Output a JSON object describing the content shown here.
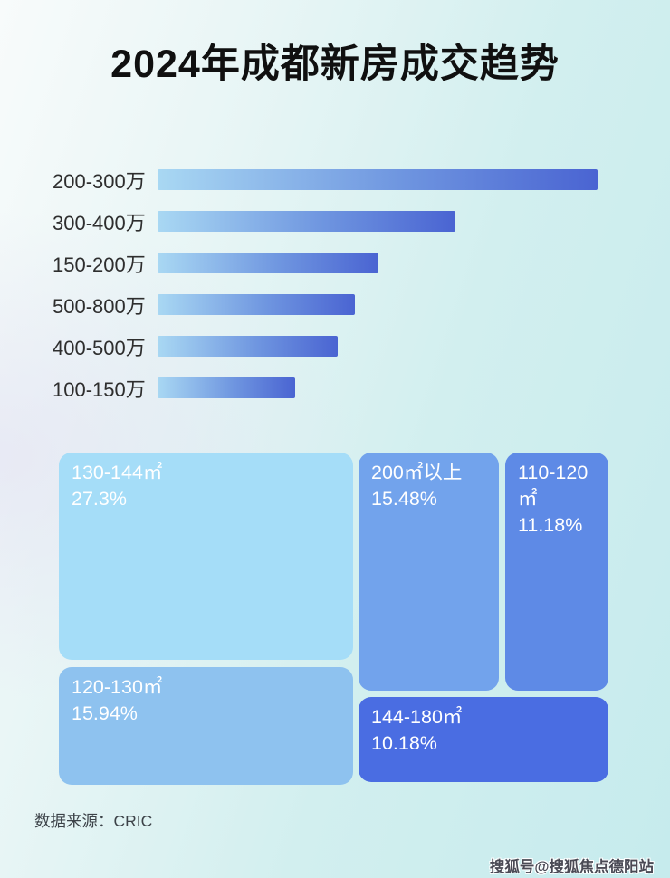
{
  "page": {
    "title": "2024年成都新房成交趋势"
  },
  "footer": {
    "source_label": "数据来源：CRIC"
  },
  "watermark": {
    "text": "搜狐号@搜狐焦点德阳站"
  },
  "colors": {
    "background_start": "#f8fbfb",
    "background_end": "#c6ebed",
    "bar_gradient_start": "#a9d8f3",
    "bar_gradient_end": "#4a64d2",
    "title_text": "#101010",
    "bar_label_text": "#2e2e2e",
    "tile_text": "#ffffff"
  },
  "bar_chart": {
    "rows": [
      {
        "label": "200-300万",
        "width_css": "99.2%"
      },
      {
        "label": "300-400万",
        "width_css": "67.1%"
      },
      {
        "label": "150-200万",
        "width_css": "49.8%"
      },
      {
        "label": "500-800万",
        "width_css": "44.5%"
      },
      {
        "label": "400-500万",
        "width_css": "40.6%"
      },
      {
        "label": "100-150万",
        "width_css": "31.0%"
      }
    ]
  },
  "treemap": {
    "tiles": [
      {
        "label": "130-144㎡",
        "value": "27.3%",
        "color": "#a5ddf8"
      },
      {
        "label": "120-130㎡",
        "value": "15.94%",
        "color": "#8ec2ef"
      },
      {
        "label": "200㎡以上",
        "value": "15.48%",
        "color": "#72a3ec"
      },
      {
        "label": "110-120㎡",
        "value": "11.18%",
        "color": "#5e8ae6"
      },
      {
        "label": "144-180㎡",
        "value": "10.18%",
        "color": "#4a6de2"
      }
    ]
  },
  "chart_data": [
    {
      "type": "bar",
      "orientation": "horizontal",
      "title": "2024年成都新房成交趋势",
      "categories": [
        "200-300万",
        "300-400万",
        "150-200万",
        "500-800万",
        "400-500万",
        "100-150万"
      ],
      "values_pct_of_longest_bar": [
        100,
        67.7,
        50.2,
        44.9,
        40.9,
        31.3
      ],
      "value_labels_shown": false,
      "axis_shown": false,
      "grid": false,
      "legend": false,
      "bar_color_gradient": [
        "#a9d8f3",
        "#4a64d2"
      ]
    },
    {
      "type": "treemap",
      "categories": [
        "130-144㎡",
        "120-130㎡",
        "200㎡以上",
        "110-120㎡",
        "144-180㎡"
      ],
      "values_pct": [
        27.3,
        15.94,
        15.48,
        11.18,
        10.18
      ],
      "colors": [
        "#a5ddf8",
        "#8ec2ef",
        "#72a3ec",
        "#5e8ae6",
        "#4a6de2"
      ],
      "legend": false
    }
  ]
}
